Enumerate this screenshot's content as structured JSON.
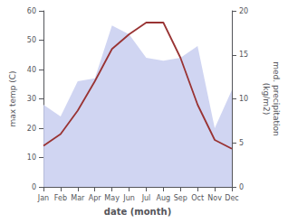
{
  "chart_data": {
    "type": "line",
    "xlabel": "date (month)",
    "ylabel": "max temp (C)",
    "y2label": "med. precipitation\n(kg/m2)",
    "categories": [
      "Jan",
      "Feb",
      "Mar",
      "Apr",
      "May",
      "Jun",
      "Jul",
      "Aug",
      "Sep",
      "Oct",
      "Nov",
      "Dec"
    ],
    "series": [
      {
        "type": "area",
        "color": "#c8cef0",
        "values": [
          28,
          24,
          36,
          37,
          55,
          52,
          44,
          43,
          44,
          48,
          20,
          33
        ]
      },
      {
        "type": "line",
        "color": "#993333",
        "values": [
          14,
          18,
          26,
          36,
          47,
          52,
          56,
          56,
          44,
          28,
          16,
          13
        ]
      }
    ],
    "ylim": [
      0,
      60
    ],
    "yticks": [
      0,
      10,
      20,
      30,
      40,
      50,
      60
    ],
    "y2lim": [
      0,
      20
    ],
    "y2ticks": [
      0,
      5,
      10,
      15,
      20
    ],
    "grid": false
  }
}
